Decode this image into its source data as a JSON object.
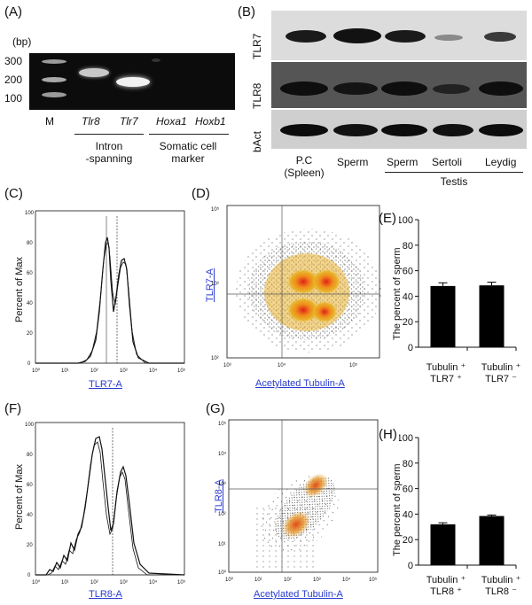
{
  "panels": {
    "A": "(A)",
    "B": "(B)",
    "C": "(C)",
    "D": "(D)",
    "E": "(E)",
    "F": "(F)",
    "G": "(G)",
    "H": "(H)"
  },
  "gel": {
    "bp_unit": "(bp)",
    "bp_ticks": [
      "300",
      "200",
      "100"
    ],
    "lanes": [
      "M",
      "Tlr8",
      "Tlr7",
      "Hoxa1",
      "Hoxb1"
    ],
    "group1": [
      "Intron",
      "-spanning"
    ],
    "group2": [
      "Somatic cell",
      "marker"
    ]
  },
  "blot": {
    "rows": [
      "TLR7",
      "TLR8",
      "bAct"
    ],
    "lanes": [
      "P.C",
      "(Spleen)",
      "Sperm",
      "Sperm",
      "Sertoli",
      "Leydig"
    ],
    "group": "Testis"
  },
  "hist_C": {
    "ylabel": "Percent of Max",
    "xlabel": "TLR7-A",
    "yticks": [
      "0",
      "20",
      "40",
      "60",
      "80",
      "100"
    ],
    "xticks": [
      "10⁰",
      "10¹",
      "10²",
      "10³",
      "10⁴",
      "10⁵"
    ]
  },
  "dot_D": {
    "ylabel": "TLR7-A",
    "xlabel": "Acetylated Tubulin-A",
    "yticks": [
      "10⁵",
      "10³",
      "10²"
    ],
    "xticks": [
      "10³",
      "10⁴",
      "10⁵"
    ]
  },
  "hist_F": {
    "ylabel": "Percent of Max",
    "xlabel": "TLR8-A",
    "yticks": [
      "0",
      "20",
      "40",
      "60",
      "80",
      "100"
    ],
    "xticks": [
      "10⁰",
      "10¹",
      "10²",
      "10³",
      "10⁴",
      "10⁵"
    ]
  },
  "dot_G": {
    "ylabel": "TLR8-A",
    "xlabel": "Acetylated Tubulin-A",
    "yticks": [
      "10⁵",
      "10⁴",
      "10³",
      "10²",
      "10¹",
      "10⁰"
    ],
    "xticks": [
      "10⁰",
      "10¹",
      "10²",
      "10³",
      "10⁴",
      "10⁵"
    ]
  },
  "chart_data": [
    {
      "type": "bar",
      "panel": "E",
      "ylabel": "The percent of sperm",
      "ylim": [
        0,
        100
      ],
      "yticks": [
        "0",
        "20",
        "40",
        "60",
        "80",
        "100"
      ],
      "categories": [
        [
          "Tubulin ⁺",
          "TLR7 ⁺"
        ],
        [
          "Tubulin ⁺",
          "TLR7 ⁻"
        ]
      ],
      "values": [
        48,
        48.5
      ],
      "errors": [
        2.5,
        2.5
      ]
    },
    {
      "type": "bar",
      "panel": "H",
      "ylabel": "The percent of sperm",
      "ylim": [
        0,
        100
      ],
      "yticks": [
        "0",
        "20",
        "40",
        "60",
        "80",
        "100"
      ],
      "categories": [
        [
          "Tubulin ⁺",
          "TLR8 ⁺"
        ],
        [
          "Tubulin ⁺",
          "TLR8 ⁻"
        ]
      ],
      "values": [
        32,
        38.5
      ],
      "errors": [
        1.2,
        0.8
      ]
    }
  ]
}
